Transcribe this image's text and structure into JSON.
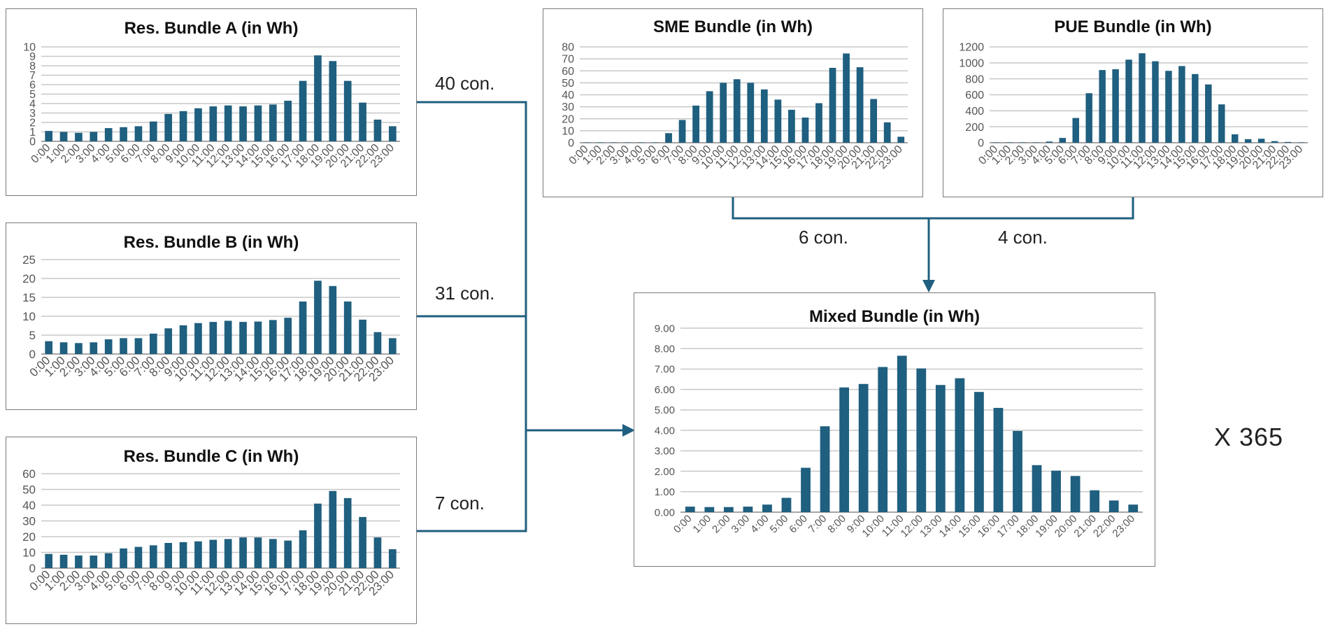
{
  "colors": {
    "bar": "#1f5f7f",
    "grid": "#c8c8c8",
    "axis": "#888888",
    "tick_text": "#555555",
    "connector": "#1f5f7f"
  },
  "hours": [
    "0:00",
    "1:00",
    "2:00",
    "3:00",
    "4:00",
    "5:00",
    "6:00",
    "7:00",
    "8:00",
    "9:00",
    "10:00",
    "11:00",
    "12:00",
    "13:00",
    "14:00",
    "15:00",
    "16:00",
    "17:00",
    "18:00",
    "19:00",
    "20:00",
    "21:00",
    "22:00",
    "23:00"
  ],
  "connections": {
    "res_a": "40 con.",
    "res_b": "31 con.",
    "res_c": "7 con.",
    "sme": "6 con.",
    "pue": "4 con."
  },
  "multiplier": "X  365",
  "chart_data": [
    {
      "id": "res_a",
      "type": "bar",
      "title": "Res. Bundle A (in Wh)",
      "ylim": [
        0,
        10
      ],
      "yticks": [
        "0",
        "1",
        "2",
        "3",
        "4",
        "5",
        "6",
        "7",
        "8",
        "9",
        "10"
      ],
      "values": [
        1.1,
        1.0,
        0.9,
        1.0,
        1.4,
        1.5,
        1.6,
        2.1,
        2.9,
        3.2,
        3.5,
        3.7,
        3.8,
        3.7,
        3.8,
        3.9,
        4.3,
        6.4,
        9.1,
        8.5,
        6.4,
        4.1,
        2.3,
        1.6
      ]
    },
    {
      "id": "res_b",
      "type": "bar",
      "title": "Res. Bundle B (in Wh)",
      "ylim": [
        0,
        25
      ],
      "yticks": [
        "0",
        "5",
        "10",
        "15",
        "20",
        "25"
      ],
      "values": [
        3.4,
        3.1,
        2.9,
        3.1,
        3.9,
        4.2,
        4.2,
        5.4,
        6.8,
        7.6,
        8.2,
        8.5,
        8.8,
        8.5,
        8.6,
        9.0,
        9.6,
        13.9,
        19.4,
        18.0,
        13.9,
        9.1,
        5.8,
        4.2
      ]
    },
    {
      "id": "res_c",
      "type": "bar",
      "title": "Res. Bundle C (in Wh)",
      "ylim": [
        0,
        60
      ],
      "yticks": [
        "0",
        "10",
        "20",
        "30",
        "40",
        "50",
        "60"
      ],
      "values": [
        9,
        8.5,
        8,
        8,
        9.5,
        12.5,
        13.5,
        14.5,
        16,
        16.5,
        17,
        18,
        18.5,
        19.5,
        19.5,
        18.5,
        17.5,
        24,
        41,
        49,
        44.5,
        32.5,
        19.5,
        12
      ]
    },
    {
      "id": "sme",
      "type": "bar",
      "title": "SME Bundle (in Wh)",
      "ylim": [
        0,
        80
      ],
      "yticks": [
        "0",
        "10",
        "20",
        "30",
        "40",
        "50",
        "60",
        "70",
        "80"
      ],
      "values": [
        0.3,
        0.3,
        0.3,
        0.3,
        0.3,
        0.3,
        8,
        19,
        31,
        43,
        50,
        53,
        50,
        44.5,
        36,
        27.5,
        21,
        33,
        62.5,
        74.5,
        63,
        36.5,
        17,
        5
      ]
    },
    {
      "id": "pue",
      "type": "bar",
      "title": "PUE Bundle (in Wh)",
      "ylim": [
        0,
        1200
      ],
      "yticks": [
        "0",
        "200",
        "400",
        "600",
        "800",
        "1000",
        "1200"
      ],
      "values": [
        5,
        5,
        5,
        5,
        15,
        60,
        310,
        620,
        910,
        920,
        1040,
        1120,
        1020,
        900,
        960,
        860,
        730,
        480,
        105,
        45,
        50,
        20,
        10,
        5
      ]
    },
    {
      "id": "mixed",
      "type": "bar",
      "title": "Mixed Bundle (in Wh)",
      "ylim": [
        0,
        9
      ],
      "yticks": [
        "0.00",
        "1.00",
        "2.00",
        "3.00",
        "4.00",
        "5.00",
        "6.00",
        "7.00",
        "8.00",
        "9.00"
      ],
      "values": [
        0.27,
        0.25,
        0.25,
        0.27,
        0.37,
        0.7,
        2.17,
        4.2,
        6.1,
        6.27,
        7.1,
        7.65,
        7.03,
        6.22,
        6.55,
        5.88,
        5.1,
        3.97,
        2.3,
        2.03,
        1.77,
        1.07,
        0.57,
        0.37
      ]
    }
  ]
}
